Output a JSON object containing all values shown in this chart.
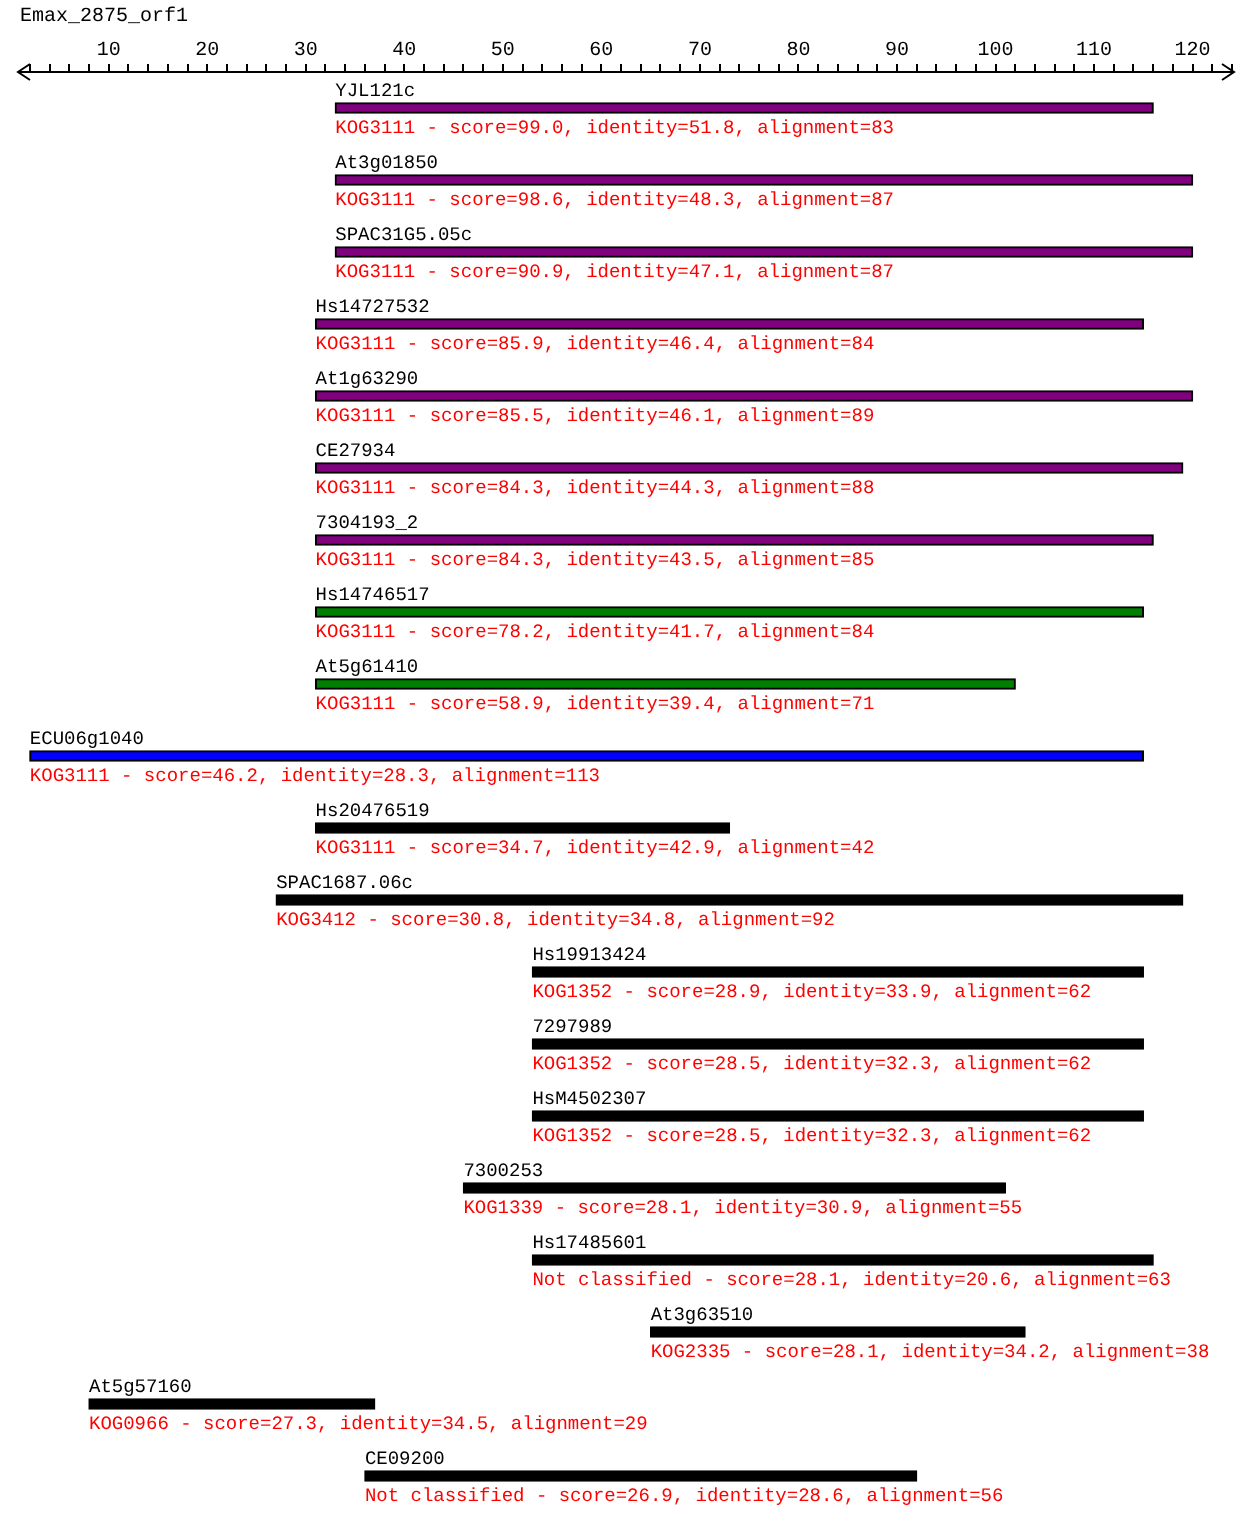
{
  "chart_data": {
    "type": "bar",
    "orientation": "horizontal",
    "title": "Emax_2875_orf1",
    "categories": [
      "YJL121c",
      "At3g01850",
      "SPAC31G5.05c",
      "Hs14727532",
      "At1g63290",
      "CE27934",
      "7304193_2",
      "Hs14746517",
      "At5g61410",
      "ECU06g1040",
      "Hs20476519",
      "SPAC1687.06c",
      "Hs19913424",
      "7297989",
      "HsM4502307",
      "7300253",
      "Hs17485601",
      "At3g63510",
      "At5g57160",
      "CE09200"
    ],
    "base": [
      33,
      33,
      33,
      31,
      31,
      31,
      31,
      31,
      31,
      2,
      31,
      27,
      53,
      53,
      53,
      46,
      53,
      65,
      8,
      36
    ],
    "values": [
      83,
      87,
      87,
      84,
      89,
      88,
      85,
      84,
      71,
      113,
      42,
      92,
      62,
      62,
      62,
      55,
      63,
      38,
      29,
      56
    ],
    "colors": [
      "#800080",
      "#800080",
      "#800080",
      "#800080",
      "#800080",
      "#800080",
      "#800080",
      "#008000",
      "#008000",
      "#0000ff",
      "#000000",
      "#000000",
      "#000000",
      "#000000",
      "#000000",
      "#000000",
      "#000000",
      "#000000",
      "#000000",
      "#000000"
    ],
    "value_labels": [
      "KOG3111 - score=99.0, identity=51.8, alignment=83",
      "KOG3111 - score=98.6, identity=48.3, alignment=87",
      "KOG3111 - score=90.9, identity=47.1, alignment=87",
      "KOG3111 - score=85.9, identity=46.4, alignment=84",
      "KOG3111 - score=85.5, identity=46.1, alignment=89",
      "KOG3111 - score=84.3, identity=44.3, alignment=88",
      "KOG3111 - score=84.3, identity=43.5, alignment=85",
      "KOG3111 - score=78.2, identity=41.7, alignment=84",
      "KOG3111 - score=58.9, identity=39.4, alignment=71",
      "KOG3111 - score=46.2, identity=28.3, alignment=113",
      "KOG3111 - score=34.7, identity=42.9, alignment=42",
      "KOG3412 - score=30.8, identity=34.8, alignment=92",
      "KOG1352 - score=28.9, identity=33.9, alignment=62",
      "KOG1352 - score=28.5, identity=32.3, alignment=62",
      "KOG1352 - score=28.5, identity=32.3, alignment=62",
      "KOG1339 - score=28.1, identity=30.9, alignment=55",
      "Not classified - score=28.1, identity=20.6, alignment=63",
      "KOG2335 - score=28.1, identity=34.2, alignment=38",
      "KOG0966 - score=27.3, identity=34.5, alignment=29",
      "Not classified - score=26.9, identity=28.6, alignment=56"
    ],
    "xlim": [
      1,
      124
    ],
    "xticks": [
      {
        "value": 2,
        "label": null
      },
      {
        "value": 4,
        "label": null
      },
      {
        "value": 6,
        "label": null
      },
      {
        "value": 8,
        "label": null
      },
      10,
      {
        "value": 12,
        "label": null
      },
      {
        "value": 14,
        "label": null
      },
      {
        "value": 16,
        "label": null
      },
      {
        "value": 18,
        "label": null
      },
      20,
      {
        "value": 22,
        "label": null
      },
      {
        "value": 24,
        "label": null
      },
      {
        "value": 26,
        "label": null
      },
      {
        "value": 28,
        "label": null
      },
      30,
      {
        "value": 32,
        "label": null
      },
      {
        "value": 34,
        "label": null
      },
      {
        "value": 36,
        "label": null
      },
      {
        "value": 38,
        "label": null
      },
      40,
      {
        "value": 42,
        "label": null
      },
      {
        "value": 44,
        "label": null
      },
      {
        "value": 46,
        "label": null
      },
      {
        "value": 48,
        "label": null
      },
      50,
      {
        "value": 52,
        "label": null
      },
      {
        "value": 54,
        "label": null
      },
      {
        "value": 56,
        "label": null
      },
      {
        "value": 58,
        "label": null
      },
      60,
      {
        "value": 62,
        "label": null
      },
      {
        "value": 64,
        "label": null
      },
      {
        "value": 66,
        "label": null
      },
      {
        "value": 68,
        "label": null
      },
      70,
      {
        "value": 72,
        "label": null
      },
      {
        "value": 74,
        "label": null
      },
      {
        "value": 76,
        "label": null
      },
      {
        "value": 78,
        "label": null
      },
      80,
      {
        "value": 82,
        "label": null
      },
      {
        "value": 84,
        "label": null
      },
      {
        "value": 86,
        "label": null
      },
      {
        "value": 88,
        "label": null
      },
      90,
      {
        "value": 92,
        "label": null
      },
      {
        "value": 94,
        "label": null
      },
      {
        "value": 96,
        "label": null
      },
      {
        "value": 98,
        "label": null
      },
      100,
      {
        "value": 102,
        "label": null
      },
      {
        "value": 104,
        "label": null
      },
      {
        "value": 106,
        "label": null
      },
      {
        "value": 108,
        "label": null
      },
      110,
      {
        "value": 112,
        "label": null
      },
      {
        "value": 114,
        "label": null
      },
      {
        "value": 116,
        "label": null
      },
      {
        "value": 118,
        "label": null
      },
      120,
      {
        "value": 122,
        "label": null
      },
      {
        "value": 124,
        "label": null
      }
    ],
    "grid": false,
    "legend": false
  }
}
